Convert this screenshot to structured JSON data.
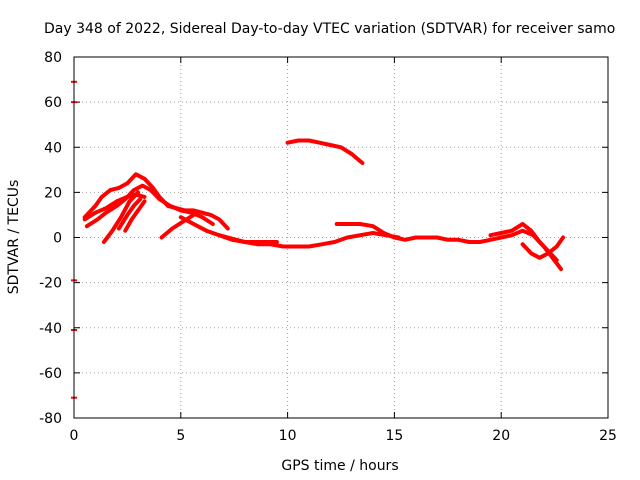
{
  "chart_data": {
    "type": "line",
    "title": "Day 348 of 2022, Sidereal Day-to-day VTEC variation (SDTVAR) for receiver samo",
    "xlabel": "GPS time / hours",
    "ylabel": "SDTVAR / TECUs",
    "xlim": [
      0,
      25
    ],
    "ylim": [
      -80,
      80
    ],
    "xticks": [
      0,
      5,
      10,
      15,
      20,
      25
    ],
    "yticks": [
      -80,
      -60,
      -40,
      -20,
      0,
      20,
      40,
      60,
      80
    ],
    "grid": true,
    "color": "#ff0000",
    "series": [
      {
        "name": "track-1",
        "x": [
          0.5,
          1.0,
          1.3,
          1.7,
          2.1,
          2.5,
          2.9,
          3.3,
          3.7,
          4.0,
          4.4,
          4.8,
          5.2,
          5.6,
          6.0,
          6.4,
          6.8,
          7.2
        ],
        "y": [
          9,
          14,
          18,
          21,
          22,
          24,
          28,
          26,
          22,
          18,
          14,
          13,
          12,
          12,
          11,
          10,
          8,
          4
        ]
      },
      {
        "name": "track-2",
        "x": [
          0.6,
          1.1,
          1.5,
          2.0,
          2.4,
          2.8,
          3.2,
          3.6,
          4.0,
          4.5,
          5.0,
          5.5,
          6.0,
          6.5
        ],
        "y": [
          5,
          8,
          11,
          14,
          17,
          21,
          23,
          21,
          17,
          14,
          12,
          11,
          9,
          6
        ]
      },
      {
        "name": "track-3",
        "x": [
          0.5,
          1.0,
          1.5,
          2.0,
          2.5,
          2.9,
          3.3
        ],
        "y": [
          8,
          11,
          13,
          16,
          18,
          19,
          18
        ]
      },
      {
        "name": "track-4",
        "x": [
          1.4,
          1.8,
          2.2,
          2.6,
          3.0
        ],
        "y": [
          -2,
          3,
          9,
          16,
          20
        ]
      },
      {
        "name": "track-5",
        "x": [
          2.1,
          2.5,
          2.8,
          3.1
        ],
        "y": [
          4,
          10,
          14,
          17
        ]
      },
      {
        "name": "track-6",
        "x": [
          2.4,
          2.7,
          3.0,
          3.3
        ],
        "y": [
          3,
          8,
          12,
          16
        ]
      },
      {
        "name": "track-7",
        "x": [
          4.1,
          4.6,
          5.1,
          5.6
        ],
        "y": [
          0,
          4,
          7,
          10
        ]
      },
      {
        "name": "track-8",
        "x": [
          5.0,
          5.6,
          6.2,
          6.8,
          7.4,
          8.0,
          8.6,
          9.2,
          9.8,
          10.4,
          11.0,
          11.6,
          12.2,
          12.8,
          13.4,
          14.0,
          14.6,
          15.2
        ],
        "y": [
          9,
          6,
          3,
          1,
          -1,
          -2,
          -3,
          -3,
          -4,
          -4,
          -4,
          -3,
          -2,
          0,
          1,
          2,
          1,
          0
        ]
      },
      {
        "name": "track-9",
        "x": [
          6.8,
          7.2,
          7.6,
          8.0,
          8.5,
          9.0,
          9.5
        ],
        "y": [
          1,
          0,
          -1,
          -2,
          -2,
          -2,
          -2
        ]
      },
      {
        "name": "track-10",
        "x": [
          12.3,
          12.8,
          13.4,
          14.0,
          14.5,
          15.0,
          15.5,
          16.0,
          16.5,
          17.0,
          17.5,
          18.0,
          18.5,
          19.0,
          19.5,
          20.0,
          20.5,
          21.0,
          21.5,
          22.0,
          22.4,
          22.8
        ],
        "y": [
          6,
          6,
          6,
          5,
          2,
          0,
          -1,
          0,
          0,
          0,
          -1,
          -1,
          -2,
          -2,
          -1,
          0,
          1,
          3,
          1,
          -4,
          -9,
          -14
        ]
      },
      {
        "name": "track-11",
        "x": [
          19.5,
          20.0,
          20.5,
          21.0,
          21.4,
          21.8,
          22.2,
          22.6
        ],
        "y": [
          1,
          2,
          3,
          6,
          3,
          -2,
          -6,
          -10
        ]
      },
      {
        "name": "track-12",
        "x": [
          21.0,
          21.4,
          21.8,
          22.2,
          22.6,
          22.9
        ],
        "y": [
          -3,
          -7,
          -9,
          -7,
          -4,
          0
        ]
      },
      {
        "name": "track-13",
        "x": [
          10.0,
          10.5,
          11.0,
          11.5,
          12.0,
          12.5,
          13.0,
          13.5
        ],
        "y": [
          42,
          43,
          43,
          42,
          41,
          40,
          37,
          33
        ]
      }
    ],
    "markers": {
      "name": "left-axis-markers",
      "x": [
        0,
        0,
        0,
        0,
        0
      ],
      "y": [
        69,
        60,
        -19,
        -41,
        -71
      ]
    }
  }
}
